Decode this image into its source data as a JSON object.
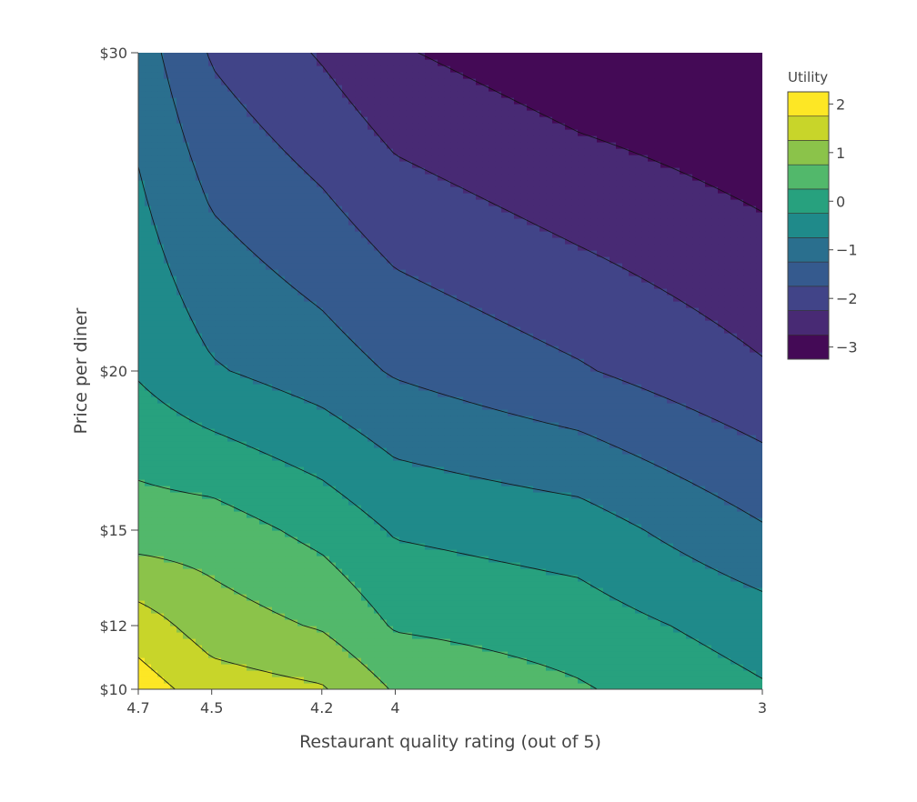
{
  "chart_data": {
    "type": "contour",
    "xlabel": "Restaurant quality rating (out of 5)",
    "ylabel": "Price per diner",
    "x_axis": {
      "reversed": true,
      "range": [
        4.7,
        3
      ],
      "ticks": [
        4.7,
        4.5,
        4.2,
        4,
        3
      ],
      "tick_labels": [
        "4.7",
        "4.5",
        "4.2",
        "4",
        "3"
      ]
    },
    "y_axis": {
      "range": [
        10,
        30
      ],
      "ticks": [
        10,
        12,
        15,
        20,
        30
      ],
      "tick_labels": [
        "$10",
        "$12",
        "$15",
        "$20",
        "$30"
      ]
    },
    "colorbar": {
      "title": "Utility",
      "range": [
        -3.25,
        2.25
      ],
      "ticks": [
        2,
        1,
        0,
        -1,
        -2,
        -3
      ],
      "tick_labels": [
        "2",
        "1",
        "0",
        "−1",
        "−2",
        "−3"
      ],
      "level_step": 0.5,
      "colorscale": [
        "#fde725",
        "#c8d52a",
        "#8bc34a",
        "#52b86b",
        "#27a17e",
        "#1f8a8a",
        "#2a6f8e",
        "#355a8e",
        "#414488",
        "#482a74",
        "#440a56"
      ]
    },
    "x": [
      4.7,
      4.5,
      4.2,
      4.0,
      3.5,
      3.0
    ],
    "y": [
      10,
      12,
      15,
      20,
      30
    ],
    "z": [
      [
        2.0,
        1.5,
        1.3,
        0.7,
        0.3,
        -0.2
      ],
      [
        1.5,
        1.0,
        0.7,
        0.2,
        0.0,
        -0.5
      ],
      [
        0.5,
        0.5,
        0.1,
        -0.3,
        -0.5,
        -1.2
      ],
      [
        -0.3,
        -0.7,
        -1.0,
        -1.3,
        -1.7,
        -2.2
      ],
      [
        -1.0,
        -1.8,
        -2.3,
        -2.7,
        -3.1,
        -3.3
      ]
    ]
  }
}
